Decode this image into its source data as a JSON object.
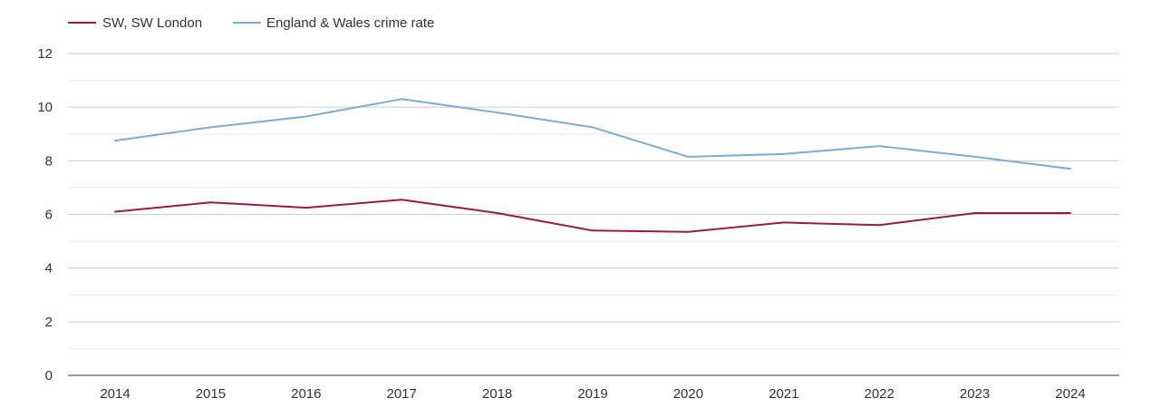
{
  "chart_data": {
    "type": "line",
    "title": "",
    "xlabel": "",
    "ylabel": "",
    "x": [
      2014,
      2015,
      2016,
      2017,
      2018,
      2019,
      2020,
      2021,
      2022,
      2023,
      2024
    ],
    "ylim": [
      0,
      12
    ],
    "yticks": [
      0,
      2,
      4,
      6,
      8,
      10,
      12
    ],
    "grid": true,
    "legend_position": "top-left",
    "series": [
      {
        "name": "SW, SW London",
        "color": "#9b1b3c",
        "values": [
          6.1,
          6.45,
          6.25,
          6.55,
          6.05,
          5.4,
          5.35,
          5.7,
          5.6,
          6.05,
          6.05
        ]
      },
      {
        "name": "England & Wales crime rate",
        "color": "#7aadd4",
        "values": [
          8.75,
          9.25,
          9.65,
          10.3,
          9.8,
          9.25,
          8.15,
          8.25,
          8.55,
          8.15,
          7.7
        ]
      }
    ]
  }
}
